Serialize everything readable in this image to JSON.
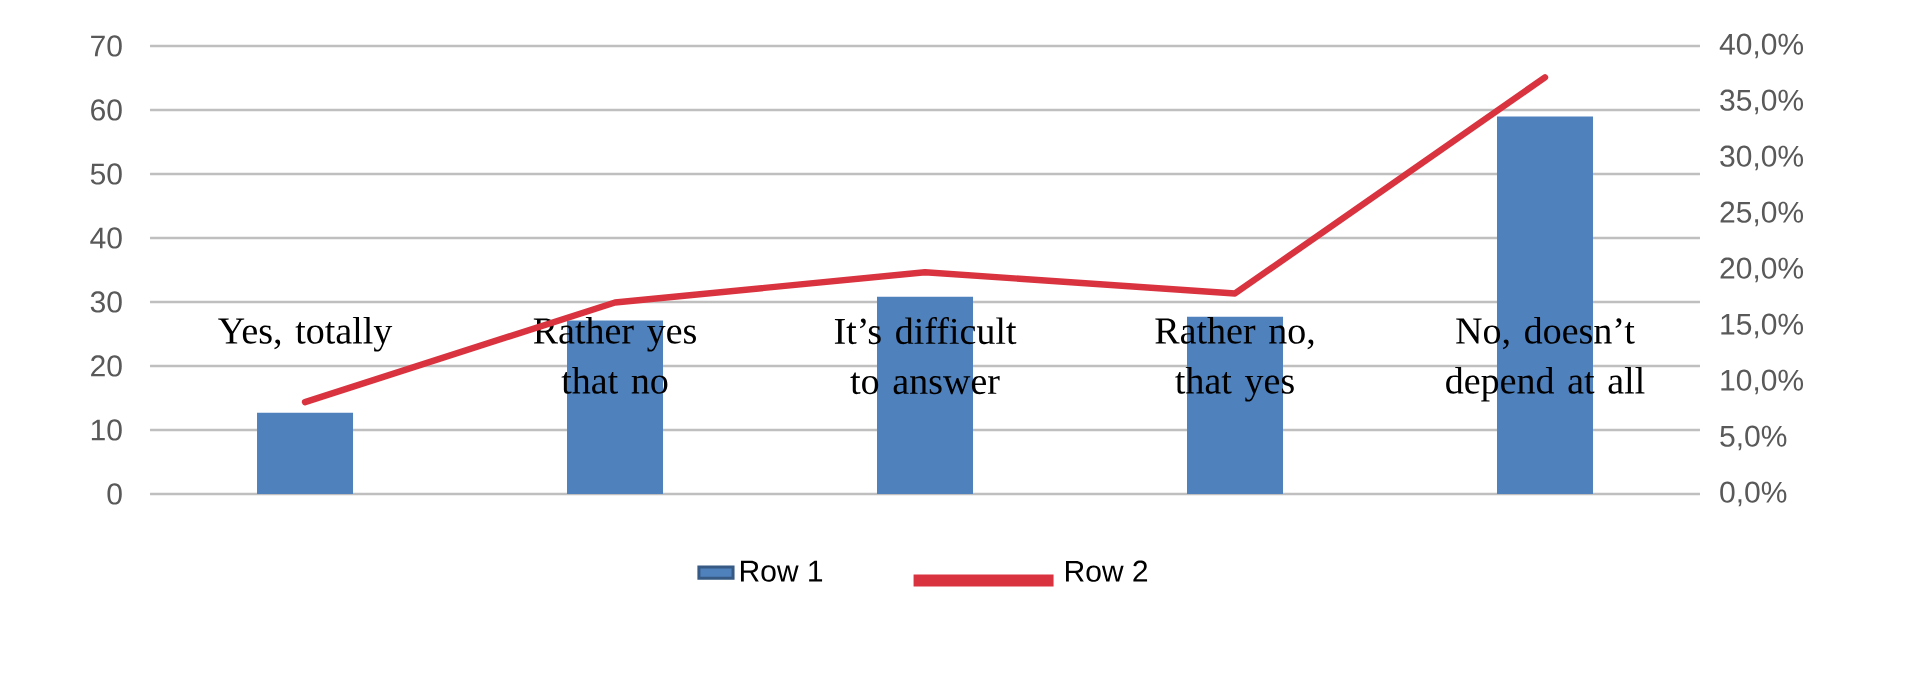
{
  "chart_data": {
    "type": "bar",
    "categories": [
      "Yes, totally",
      "Rather yes that no",
      "It’s difficult to answer",
      "Rather no, that yes",
      "No, doesn’t depend at all"
    ],
    "series": [
      {
        "name": "Row 1",
        "color": "#4f81bd",
        "values": [
          12.7,
          27.1,
          30.8,
          27.7,
          59.0
        ]
      },
      {
        "name": "Row 2",
        "color": "#d9333f",
        "type": "line",
        "axis": "y2",
        "values": [
          8.2,
          17.1,
          19.8,
          17.9,
          37.2
        ]
      }
    ],
    "ylim": [
      0,
      70
    ],
    "yticks": [
      0,
      10,
      20,
      30,
      40,
      50,
      60,
      70
    ],
    "y2lim": [
      0,
      40
    ],
    "y2ticks": [
      {
        "value": 0,
        "label": "0,0%"
      },
      {
        "value": 5,
        "label": "5,0%"
      },
      {
        "value": 10,
        "label": "10,0%"
      },
      {
        "value": 15,
        "label": "15,0%"
      },
      {
        "value": 20,
        "label": "20,0%"
      },
      {
        "value": 25,
        "label": "25,0%"
      },
      {
        "value": 30,
        "label": "30,0%"
      },
      {
        "value": 35,
        "label": "35,0%"
      },
      {
        "value": 40,
        "label": "40,0%"
      }
    ],
    "grid": "y",
    "legend": "bottom",
    "marker": "none",
    "line_style": "solid"
  }
}
